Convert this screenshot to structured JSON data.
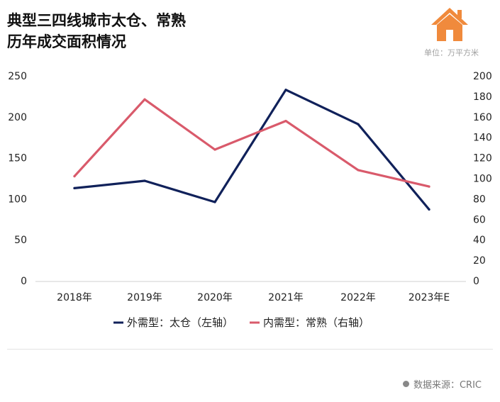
{
  "title_line1": "典型三四线城市太仓、常熟",
  "title_line2": "历年成交面积情况",
  "unit": "单位：万平方米",
  "source": "数据来源：CRIC",
  "colors": {
    "series1": "#10215a",
    "series2": "#d95a6b",
    "house": "#f08a3c"
  },
  "chart_data": {
    "type": "line",
    "categories": [
      "2018年",
      "2019年",
      "2020年",
      "2021年",
      "2022年",
      "2023年E"
    ],
    "left_axis": {
      "ylim": [
        0,
        250
      ],
      "ticks": [
        0,
        50,
        100,
        150,
        200,
        250
      ]
    },
    "right_axis": {
      "ylim": [
        0,
        200
      ],
      "ticks": [
        0,
        20,
        40,
        60,
        80,
        100,
        120,
        140,
        160,
        180,
        200
      ]
    },
    "series": [
      {
        "name": "外需型：太仓（左轴）",
        "axis": "left",
        "values": [
          113,
          122,
          96,
          233,
          191,
          87
        ]
      },
      {
        "name": "内需型：常熟（右轴）",
        "axis": "right",
        "values": [
          102,
          177,
          128,
          156,
          108,
          92
        ]
      }
    ],
    "grid": false,
    "legend": "bottom"
  }
}
